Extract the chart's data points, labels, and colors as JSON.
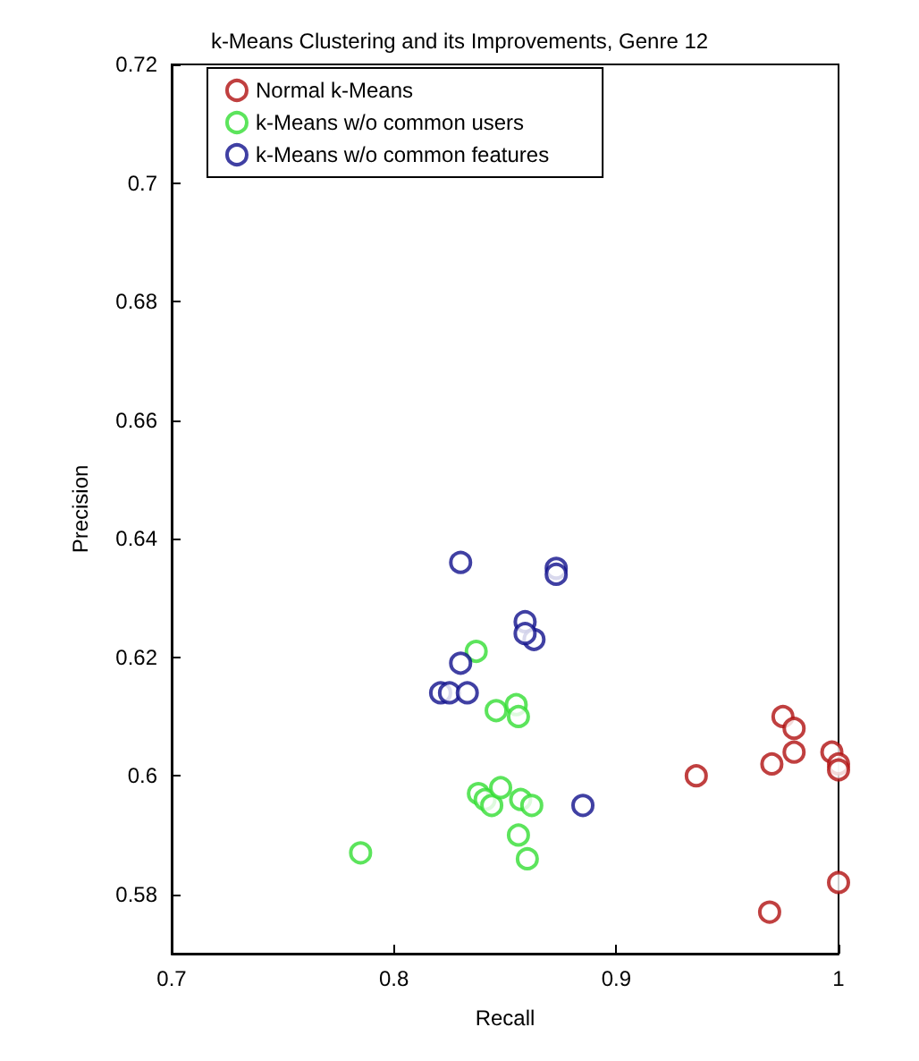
{
  "chart_data": {
    "type": "scatter",
    "title": "k-Means Clustering and its Improvements, Genre 12",
    "xlabel": "Recall",
    "ylabel": "Precision",
    "xlim": [
      0.7,
      1
    ],
    "xticks": [
      0.7,
      0.8,
      0.9,
      1
    ],
    "ylim": [
      0.57,
      0.72
    ],
    "yticks": [
      0.58,
      0.6,
      0.62,
      0.64,
      0.66,
      0.68,
      0.7,
      0.72
    ],
    "grid": false,
    "legend": "top left",
    "marker": "circle",
    "series": [
      {
        "name": "Normal k-Means",
        "color": "#b01010",
        "x": [
          0.975,
          0.98,
          0.98,
          0.97,
          0.936,
          0.997,
          1.0,
          1.0,
          1.0,
          0.969
        ],
        "values": [
          0.61,
          0.608,
          0.604,
          0.602,
          0.6,
          0.604,
          0.602,
          0.601,
          0.582,
          0.577
        ]
      },
      {
        "name": "k-Means w/o common users",
        "color": "#33dd33",
        "x": [
          0.837,
          0.846,
          0.855,
          0.856,
          0.838,
          0.841,
          0.844,
          0.848,
          0.857,
          0.862,
          0.856,
          0.86,
          0.785
        ],
        "values": [
          0.621,
          0.611,
          0.612,
          0.61,
          0.597,
          0.596,
          0.595,
          0.598,
          0.596,
          0.595,
          0.59,
          0.586,
          0.587
        ]
      },
      {
        "name": "k-Means w/o common features",
        "color": "#10108c",
        "x": [
          0.873,
          0.873,
          0.885,
          0.83,
          0.859,
          0.863,
          0.859,
          0.83,
          0.821,
          0.825,
          0.833
        ],
        "values": [
          0.635,
          0.634,
          0.595,
          0.636,
          0.626,
          0.623,
          0.624,
          0.619,
          0.614,
          0.614,
          0.614
        ]
      }
    ]
  }
}
